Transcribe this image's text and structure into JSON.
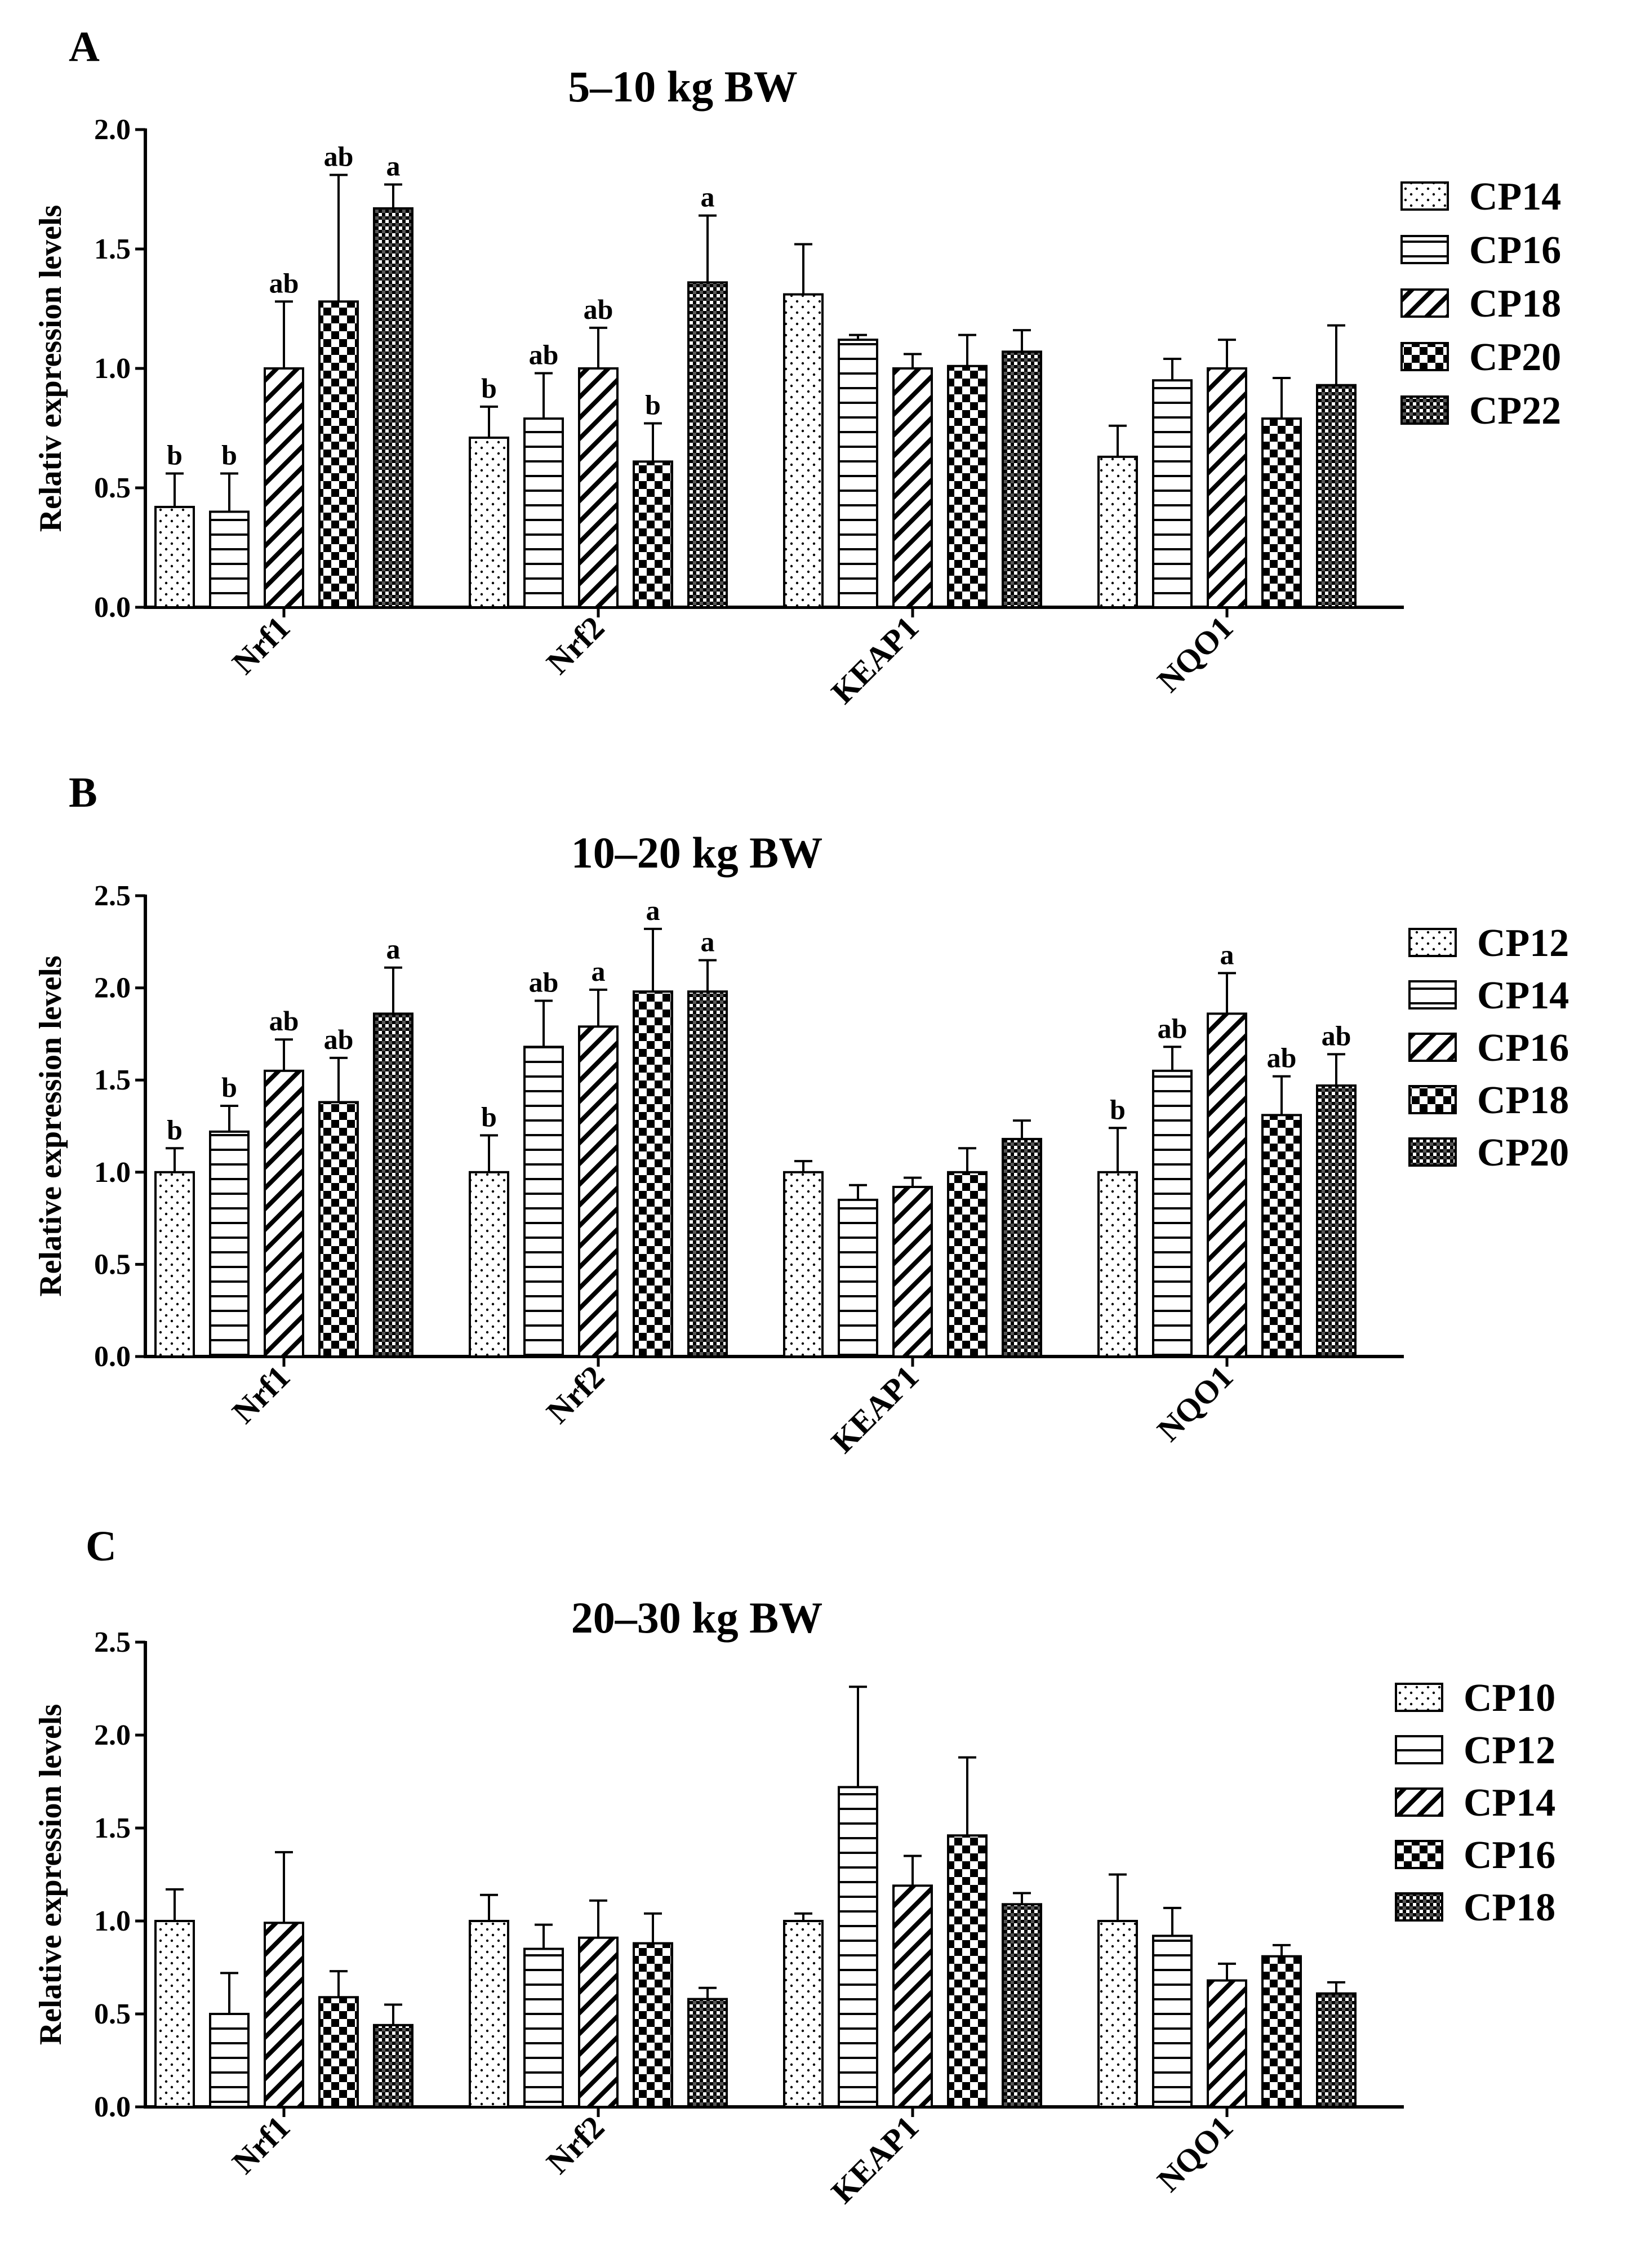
{
  "chart_data": [
    {
      "type": "bar",
      "panel": "A",
      "title": "5–10 kg BW",
      "xlabel": "",
      "ylabel": "Relativ expression levels",
      "ylim": [
        0,
        2.0
      ],
      "yticks": [
        0.0,
        0.5,
        1.0,
        1.5,
        2.0
      ],
      "ytick_labels": [
        "0.0",
        "0.5",
        "1.0",
        "1.5",
        "2.0"
      ],
      "categories": [
        "Nrf1",
        "Nrf2",
        "KEAP1",
        "NQO1"
      ],
      "series": [
        {
          "name": "CP14",
          "pattern": "dots",
          "values": [
            0.42,
            0.71,
            1.31,
            0.63
          ],
          "errors": [
            0.14,
            0.13,
            0.21,
            0.13
          ],
          "letters": [
            "b",
            "b",
            "",
            ""
          ]
        },
        {
          "name": "CP16",
          "pattern": "hlines",
          "values": [
            0.4,
            0.79,
            1.12,
            0.95
          ],
          "errors": [
            0.16,
            0.19,
            0.02,
            0.09
          ],
          "letters": [
            "b",
            "ab",
            "",
            ""
          ]
        },
        {
          "name": "CP18",
          "pattern": "diag",
          "values": [
            1.0,
            1.0,
            1.0,
            1.0
          ],
          "errors": [
            0.28,
            0.17,
            0.06,
            0.12
          ],
          "letters": [
            "ab",
            "ab",
            "",
            ""
          ]
        },
        {
          "name": "CP20",
          "pattern": "checker",
          "values": [
            1.28,
            0.61,
            1.01,
            0.79
          ],
          "errors": [
            0.53,
            0.16,
            0.13,
            0.17
          ],
          "letters": [
            "ab",
            "b",
            "",
            ""
          ]
        },
        {
          "name": "CP22",
          "pattern": "crosshatch",
          "values": [
            1.67,
            1.36,
            1.07,
            0.93
          ],
          "errors": [
            0.1,
            0.28,
            0.09,
            0.25
          ],
          "letters": [
            "a",
            "a",
            "",
            ""
          ]
        }
      ]
    },
    {
      "type": "bar",
      "panel": "B",
      "title": "10–20 kg BW",
      "xlabel": "",
      "ylabel": "Relative expression levels",
      "ylim": [
        0,
        2.5
      ],
      "yticks": [
        0.0,
        0.5,
        1.0,
        1.5,
        2.0,
        2.5
      ],
      "ytick_labels": [
        "0.0",
        "0.5",
        "1.0",
        "1.5",
        "2.0",
        "2.5"
      ],
      "categories": [
        "Nrf1",
        "Nrf2",
        "KEAP1",
        "NQO1"
      ],
      "series": [
        {
          "name": "CP12",
          "pattern": "dots",
          "values": [
            1.0,
            1.0,
            1.0,
            1.0
          ],
          "errors": [
            0.13,
            0.2,
            0.06,
            0.24
          ],
          "letters": [
            "b",
            "b",
            "",
            "b"
          ]
        },
        {
          "name": "CP14",
          "pattern": "hlines",
          "values": [
            1.22,
            1.68,
            0.85,
            1.55
          ],
          "errors": [
            0.14,
            0.25,
            0.08,
            0.13
          ],
          "letters": [
            "b",
            "ab",
            "",
            "ab"
          ]
        },
        {
          "name": "CP16",
          "pattern": "diag",
          "values": [
            1.55,
            1.79,
            0.92,
            1.86
          ],
          "errors": [
            0.17,
            0.2,
            0.05,
            0.22
          ],
          "letters": [
            "ab",
            "a",
            "",
            "a"
          ]
        },
        {
          "name": "CP18",
          "pattern": "checker",
          "values": [
            1.38,
            1.98,
            1.0,
            1.31
          ],
          "errors": [
            0.24,
            0.34,
            0.13,
            0.21
          ],
          "letters": [
            "ab",
            "a",
            "",
            "ab"
          ]
        },
        {
          "name": "CP20",
          "pattern": "crosshatch",
          "values": [
            1.86,
            1.98,
            1.18,
            1.47
          ],
          "errors": [
            0.25,
            0.17,
            0.1,
            0.17
          ],
          "letters": [
            "a",
            "a",
            "",
            "ab"
          ]
        }
      ]
    },
    {
      "type": "bar",
      "panel": "C",
      "title": "20–30 kg BW",
      "xlabel": "",
      "ylabel": "Relative expression levels",
      "ylim": [
        0,
        2.5
      ],
      "yticks": [
        0.0,
        0.5,
        1.0,
        1.5,
        2.0,
        2.5
      ],
      "ytick_labels": [
        "0.0",
        "0.5",
        "1.0",
        "1.5",
        "2.0",
        "2.5"
      ],
      "categories": [
        "Nrf1",
        "Nrf2",
        "KEAP1",
        "NQO1"
      ],
      "series": [
        {
          "name": "CP10",
          "pattern": "dots",
          "values": [
            1.0,
            1.0,
            1.0,
            1.0
          ],
          "errors": [
            0.17,
            0.14,
            0.04,
            0.25
          ],
          "letters": [
            "",
            "",
            "",
            ""
          ]
        },
        {
          "name": "CP12",
          "pattern": "hlines",
          "values": [
            0.5,
            0.85,
            1.72,
            0.92
          ],
          "errors": [
            0.22,
            0.13,
            0.54,
            0.15
          ],
          "letters": [
            "",
            "",
            "",
            ""
          ]
        },
        {
          "name": "CP14",
          "pattern": "diag",
          "values": [
            0.99,
            0.91,
            1.19,
            0.68
          ],
          "errors": [
            0.38,
            0.2,
            0.16,
            0.09
          ],
          "letters": [
            "",
            "",
            "",
            ""
          ]
        },
        {
          "name": "CP16",
          "pattern": "checker",
          "values": [
            0.59,
            0.88,
            1.46,
            0.81
          ],
          "errors": [
            0.14,
            0.16,
            0.42,
            0.06
          ],
          "letters": [
            "",
            "",
            "",
            ""
          ]
        },
        {
          "name": "CP18",
          "pattern": "crosshatch",
          "values": [
            0.44,
            0.58,
            1.09,
            0.61
          ],
          "errors": [
            0.11,
            0.06,
            0.06,
            0.06
          ],
          "letters": [
            "",
            "",
            "",
            ""
          ]
        }
      ]
    }
  ]
}
